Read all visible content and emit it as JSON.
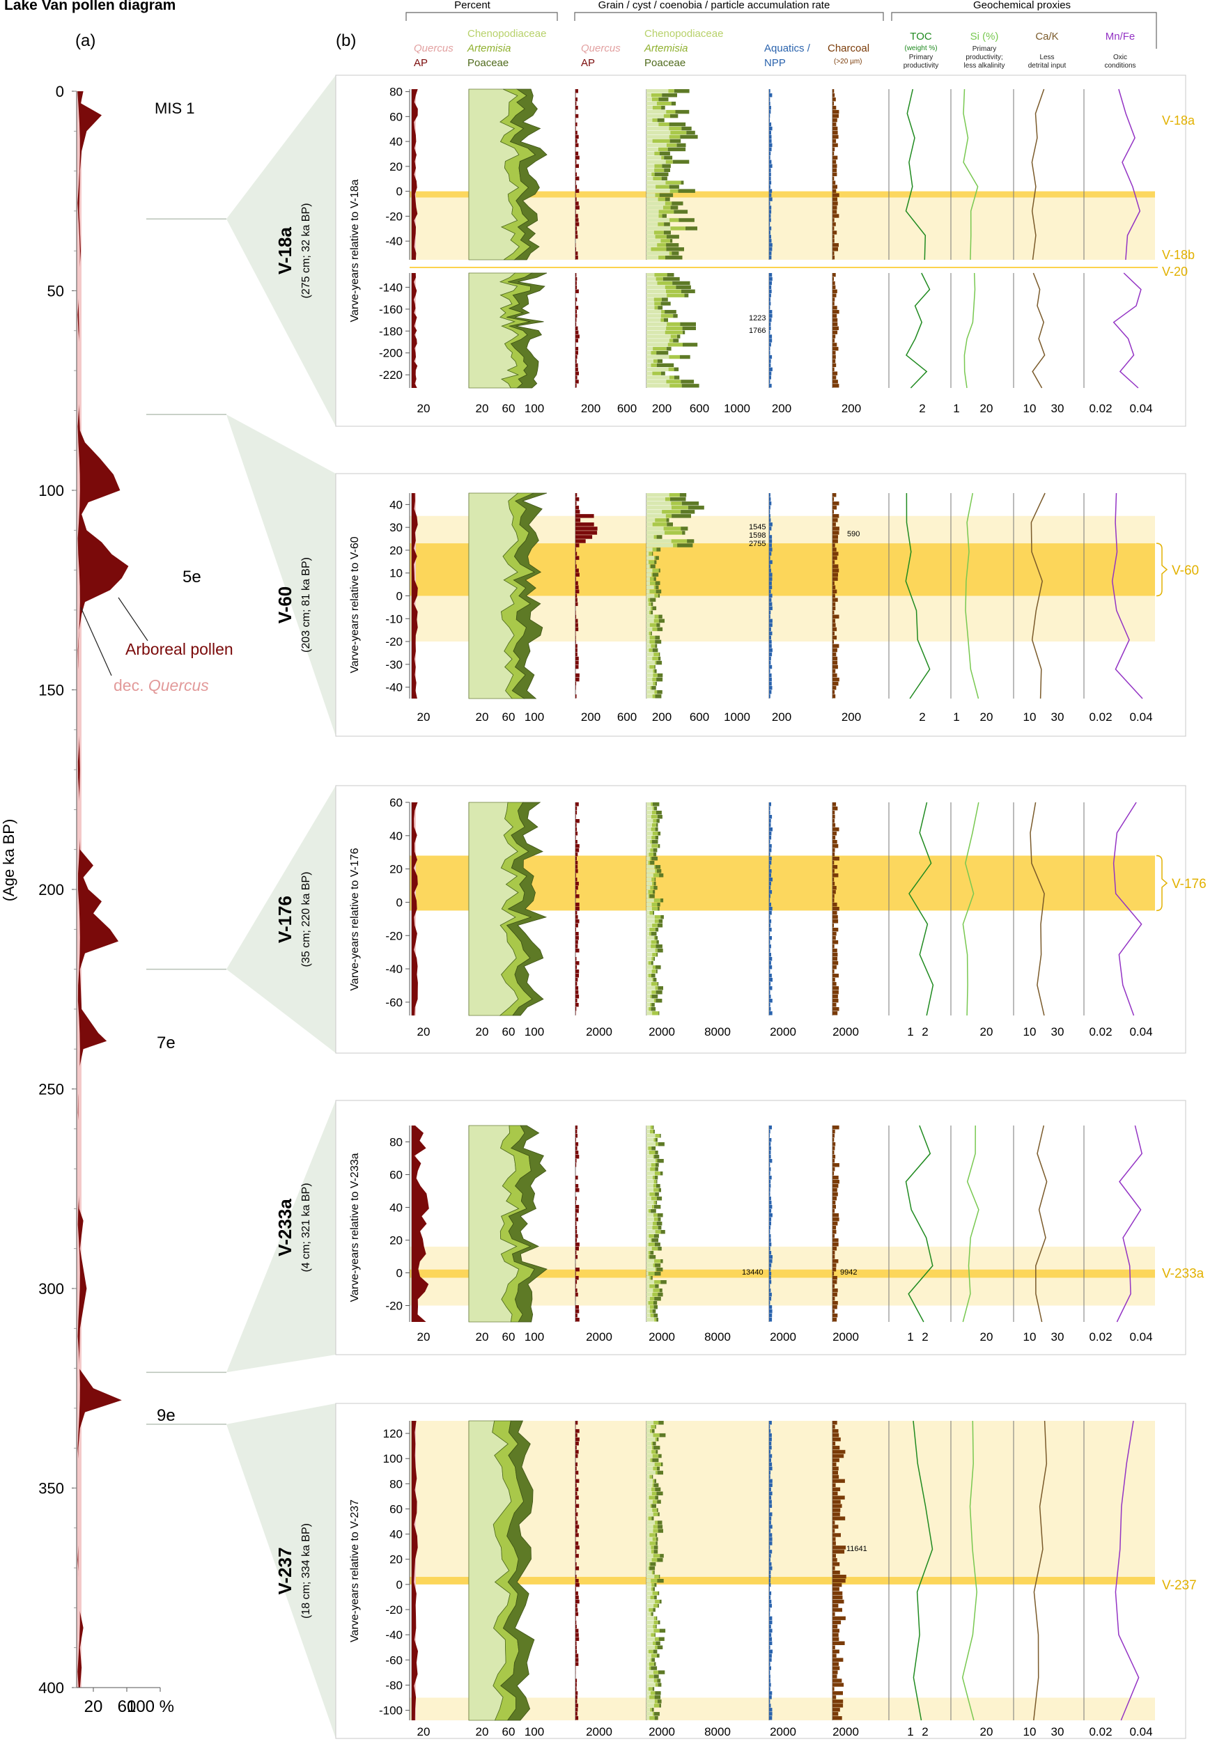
{
  "title": "Lake Van pollen diagram",
  "panel_a_label": "(a)",
  "panel_b_label": "(b)",
  "colors": {
    "ap": "#7a0a0a",
    "quercus": "#f4c9c9",
    "cheno": "#d9e8b0",
    "artemisia": "#a9c84a",
    "poaceae": "#5e7a26",
    "aquatics": "#2a63ad",
    "charcoal": "#7a3b08",
    "toc": "#1f8a1f",
    "si": "#78c850",
    "cak": "#7a5a2a",
    "mnfe": "#9333c4",
    "event": "#fcd34d",
    "event_light": "#fdf3cf",
    "panel_border": "#c8c8c8",
    "link_fill": "#d7e3d3"
  },
  "chart_data": [
    {
      "type": "area",
      "name": "Lake Van long pollen record",
      "y_axis_label": "(Age ka BP)",
      "y_range": [
        0,
        400
      ],
      "y_ticks": [
        0,
        50,
        100,
        150,
        200,
        250,
        300,
        350,
        400
      ],
      "x_ticks": [
        "20",
        "60",
        "100 %"
      ],
      "series": [
        {
          "name": "Arboreal pollen",
          "age": [
            0,
            3,
            6,
            10,
            15,
            20,
            30,
            40,
            50,
            60,
            70,
            80,
            85,
            88,
            92,
            96,
            100,
            103,
            106,
            110,
            113,
            116,
            119,
            122,
            125,
            128,
            131,
            135,
            140,
            150,
            160,
            170,
            180,
            190,
            194,
            197,
            200,
            203,
            206,
            210,
            213,
            216,
            220,
            230,
            233,
            236,
            238,
            240,
            245,
            250,
            260,
            270,
            280,
            283,
            290,
            300,
            310,
            320,
            325,
            328,
            331,
            335,
            340,
            350,
            360,
            370,
            380,
            385,
            390,
            395,
            400
          ],
          "percent": [
            8,
            5,
            30,
            12,
            6,
            4,
            3,
            5,
            2,
            3,
            2,
            3,
            4,
            10,
            28,
            44,
            52,
            14,
            6,
            12,
            30,
            42,
            62,
            54,
            40,
            10,
            6,
            3,
            2,
            2,
            3,
            4,
            3,
            4,
            20,
            8,
            14,
            30,
            20,
            40,
            50,
            10,
            4,
            6,
            16,
            26,
            36,
            8,
            3,
            2,
            2,
            2,
            3,
            8,
            4,
            12,
            4,
            3,
            20,
            54,
            10,
            4,
            2,
            2,
            2,
            2,
            3,
            8,
            4,
            6,
            4
          ]
        },
        {
          "name": "dec. Quercus",
          "age": [
            0,
            50,
            100,
            120,
            130,
            200,
            250,
            300,
            330,
            400
          ],
          "percent": [
            1,
            1,
            2,
            3,
            2,
            2,
            1,
            2,
            4,
            2
          ]
        }
      ],
      "labels": [
        "MIS 1",
        "5e",
        "7e",
        "9e"
      ],
      "legend": [
        "Arboreal pollen",
        "dec. Quercus"
      ]
    },
    {
      "type": "area",
      "name": "Event detail panels",
      "group_headers": [
        "Percent",
        "Grain / cyst / coenobia / particle accumulation rate",
        "Geochemical proxies"
      ],
      "column_titles": [
        {
          "top": "Quercus",
          "bottom": "AP"
        },
        {
          "top1": "Chenopodiaceae",
          "top2": "Artemisia",
          "bottom": "Poaceae"
        },
        {
          "top": "Quercus",
          "bottom": "AP"
        },
        {
          "top1": "Chenopodiaceae",
          "top2": "Artemisia",
          "bottom": "Poaceae"
        },
        {
          "top": "Aquatics /",
          "bottom": "NPP"
        },
        {
          "top": "Charcoal",
          "bottom": "(>20 µm)"
        },
        {
          "top": "TOC",
          "sub": "(weight %)",
          "desc1": "Primary",
          "desc2": "productivity"
        },
        {
          "top": "Si (%)",
          "desc1": "Primary",
          "desc2": "productivity;",
          "desc3": "less alkalinity"
        },
        {
          "top": "Ca/K",
          "desc1": "Less",
          "desc2": "detrital input"
        },
        {
          "top": "Mn/Fe",
          "desc1": "Oxic",
          "desc2": "conditions"
        }
      ],
      "events": [
        {
          "name": "V-18a",
          "info": "(275 cm; 32 ka BP)",
          "ylabel": "Varve-years relative to V-18a",
          "y_ticks_top": [
            "80",
            "60",
            "40",
            "20",
            "0",
            "-20",
            "-40"
          ],
          "y_ticks_bottom": [
            "-140",
            "-160",
            "-180",
            "-200",
            "-220"
          ],
          "markers": [
            "V-18a",
            "V-18b",
            "V-20"
          ],
          "annotations": [
            "1223",
            "1766"
          ],
          "x_ticks": [
            "20",
            "20",
            "60",
            "100",
            "200",
            "600",
            "200",
            "600",
            "1000",
            "200",
            "200",
            "2",
            "1",
            "20",
            "10",
            "30",
            "0.02",
            "0.04"
          ]
        },
        {
          "name": "V-60",
          "info": "(203 cm; 81 ka BP)",
          "ylabel": "Varve-years relative to V-60",
          "y_ticks": [
            "40",
            "30",
            "20",
            "10",
            "0",
            "-10",
            "-20",
            "-30",
            "-40"
          ],
          "markers": [
            "V-60"
          ],
          "annotations": [
            "1545",
            "1598",
            "2755",
            "590"
          ],
          "x_ticks": [
            "20",
            "20",
            "60",
            "100",
            "200",
            "600",
            "200",
            "600",
            "1000",
            "200",
            "200",
            "2",
            "1",
            "20",
            "10",
            "30",
            "0.02",
            "0.04"
          ]
        },
        {
          "name": "V-176",
          "info": "(35 cm; 220 ka BP)",
          "ylabel": "Varve-years relative to V-176",
          "y_ticks": [
            "60",
            "40",
            "20",
            "0",
            "-20",
            "-40",
            "-60"
          ],
          "markers": [
            "V-176"
          ],
          "annotations": [],
          "x_ticks": [
            "20",
            "20",
            "60",
            "100",
            "2000",
            "2000",
            "8000",
            "2000",
            "2000",
            "1",
            "2",
            "20",
            "10",
            "30",
            "0.02",
            "0.04"
          ]
        },
        {
          "name": "V-233a",
          "info": "(4 cm; 321 ka BP)",
          "ylabel": "Varve-years relative to V-233a",
          "y_ticks": [
            "80",
            "60",
            "40",
            "20",
            "0",
            "-20"
          ],
          "markers": [
            "V-233a"
          ],
          "annotations": [
            "13440",
            "9942"
          ],
          "x_ticks": [
            "20",
            "20",
            "60",
            "100",
            "2000",
            "2000",
            "8000",
            "2000",
            "2000",
            "1",
            "2",
            "20",
            "10",
            "30",
            "0.02",
            "0.04"
          ]
        },
        {
          "name": "V-237",
          "info": "(18 cm; 334 ka BP)",
          "ylabel": "Varve-years relative to V-237",
          "y_ticks": [
            "120",
            "100",
            "80",
            "60",
            "40",
            "20",
            "0",
            "-20",
            "-40",
            "-60",
            "-80",
            "-100"
          ],
          "markers": [
            "V-237"
          ],
          "annotations": [
            "11641"
          ],
          "x_ticks": [
            "20",
            "20",
            "60",
            "100",
            "2000",
            "2000",
            "8000",
            "2000",
            "2000",
            "1",
            "2",
            "20",
            "10",
            "30",
            "0.02",
            "0.04"
          ]
        }
      ]
    }
  ]
}
